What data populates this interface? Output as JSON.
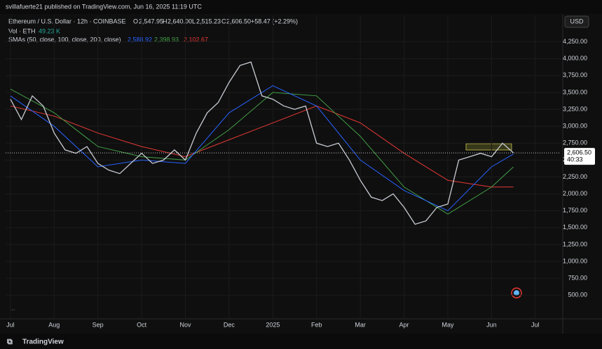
{
  "header": {
    "publisher": "svillafuerte21 published on TradingView.com, Jun 16, 2025 11:19 UTC"
  },
  "legend": {
    "symbol": "Ethereum / U.S. Dollar · 12h · COINBASE",
    "o_label": "O",
    "open": "2,547.95",
    "h_label": "H",
    "high": "2,640.00",
    "l_label": "L",
    "low": "2,515.23",
    "c_label": "C",
    "close": "2,606.50",
    "change": "+58.47 (+2.29%)",
    "vol_label": "Vol · ETH",
    "vol": "49.23 K",
    "sma_label": "SMAs (50, close, 100, close, 200, close)",
    "sma50": "2,588.92",
    "sma100": "2,398.93",
    "sma200": "2,102.67"
  },
  "currency": "USD",
  "countdown": "40:33",
  "more": "...",
  "footer": "TradingView",
  "chart_data": {
    "type": "line",
    "ylim": [
      150,
      4640
    ],
    "xlim": [
      -0.11,
      12.58
    ],
    "yticks": [
      {
        "value": 500,
        "label": "500.00"
      },
      {
        "value": 750,
        "label": "750.00"
      },
      {
        "value": 1000,
        "label": "1,000.00"
      },
      {
        "value": 1250,
        "label": "1,250.00"
      },
      {
        "value": 1500,
        "label": "1,500.00"
      },
      {
        "value": 1750,
        "label": "1,750.00"
      },
      {
        "value": 2000,
        "label": "2,000.00"
      },
      {
        "value": 2250,
        "label": "2,250.00"
      },
      {
        "value": 2500,
        "label": "2,500.00"
      },
      {
        "value": 2750,
        "label": "2,750.00"
      },
      {
        "value": 3000,
        "label": "3,000.00"
      },
      {
        "value": 3250,
        "label": "3,250.00"
      },
      {
        "value": 3500,
        "label": "3,500.00"
      },
      {
        "value": 3750,
        "label": "3,750.00"
      },
      {
        "value": 4000,
        "label": "4,000.00"
      },
      {
        "value": 4250,
        "label": "4,250.00"
      }
    ],
    "xticks": [
      {
        "value": 0,
        "label": "Jul"
      },
      {
        "value": 1,
        "label": "Aug"
      },
      {
        "value": 2,
        "label": "Sep"
      },
      {
        "value": 3,
        "label": "Oct"
      },
      {
        "value": 4,
        "label": "Nov"
      },
      {
        "value": 5,
        "label": "Dec"
      },
      {
        "value": 6,
        "label": "2025"
      },
      {
        "value": 7,
        "label": "Feb"
      },
      {
        "value": 8,
        "label": "Mar"
      },
      {
        "value": 9,
        "label": "Apr"
      },
      {
        "value": 10,
        "label": "May"
      },
      {
        "value": 11,
        "label": "Jun"
      },
      {
        "value": 12,
        "label": "Jul"
      }
    ],
    "last_price": {
      "value": 2606.5,
      "label": "2,606.50"
    },
    "last_color": "#ffffff",
    "series": [
      {
        "color": "#c8ccd4",
        "width": 1.3,
        "x": [
          0,
          0.25,
          0.5,
          0.75,
          1,
          1.25,
          1.5,
          1.75,
          2,
          2.25,
          2.5,
          2.75,
          3,
          3.25,
          3.5,
          3.75,
          4,
          4.25,
          4.5,
          4.75,
          5,
          5.25,
          5.5,
          5.75,
          6,
          6.25,
          6.5,
          6.75,
          7,
          7.25,
          7.5,
          7.75,
          8,
          8.25,
          8.5,
          8.75,
          9,
          9.25,
          9.5,
          9.75,
          10,
          10.25,
          10.5,
          10.75,
          11,
          11.25,
          11.5
        ],
        "values": [
          3400,
          3100,
          3450,
          3300,
          2900,
          2650,
          2600,
          2700,
          2450,
          2350,
          2300,
          2450,
          2600,
          2450,
          2500,
          2650,
          2500,
          2900,
          3200,
          3350,
          3650,
          3900,
          3950,
          3450,
          3400,
          3300,
          3250,
          3300,
          2750,
          2700,
          2750,
          2500,
          2200,
          1950,
          1900,
          2000,
          1800,
          1550,
          1600,
          1800,
          1850,
          2500,
          2550,
          2600,
          2550,
          2750,
          2606.5
        ]
      },
      {
        "color": "#2962ff",
        "width": 1,
        "x": [
          0,
          1,
          2,
          3,
          4,
          5,
          6,
          7,
          8,
          9,
          10,
          11,
          11.5
        ],
        "values": [
          3450,
          3000,
          2400,
          2500,
          2450,
          3200,
          3600,
          3300,
          2500,
          2050,
          1750,
          2400,
          2588.92
        ]
      },
      {
        "color": "#43a047",
        "width": 1,
        "x": [
          0,
          1,
          2,
          3,
          4,
          5,
          6,
          7,
          8,
          9,
          10,
          11,
          11.5
        ],
        "values": [
          3550,
          3200,
          2700,
          2550,
          2500,
          2950,
          3500,
          3450,
          2850,
          2100,
          1700,
          2100,
          2398.93
        ]
      },
      {
        "color": "#e53935",
        "width": 1,
        "x": [
          0,
          1,
          2,
          3,
          4,
          5,
          6,
          7,
          8,
          9,
          10,
          11,
          11.5
        ],
        "values": [
          3300,
          3150,
          2900,
          2700,
          2550,
          2800,
          3050,
          3300,
          3050,
          2600,
          2200,
          2100,
          2102.67
        ]
      }
    ]
  }
}
